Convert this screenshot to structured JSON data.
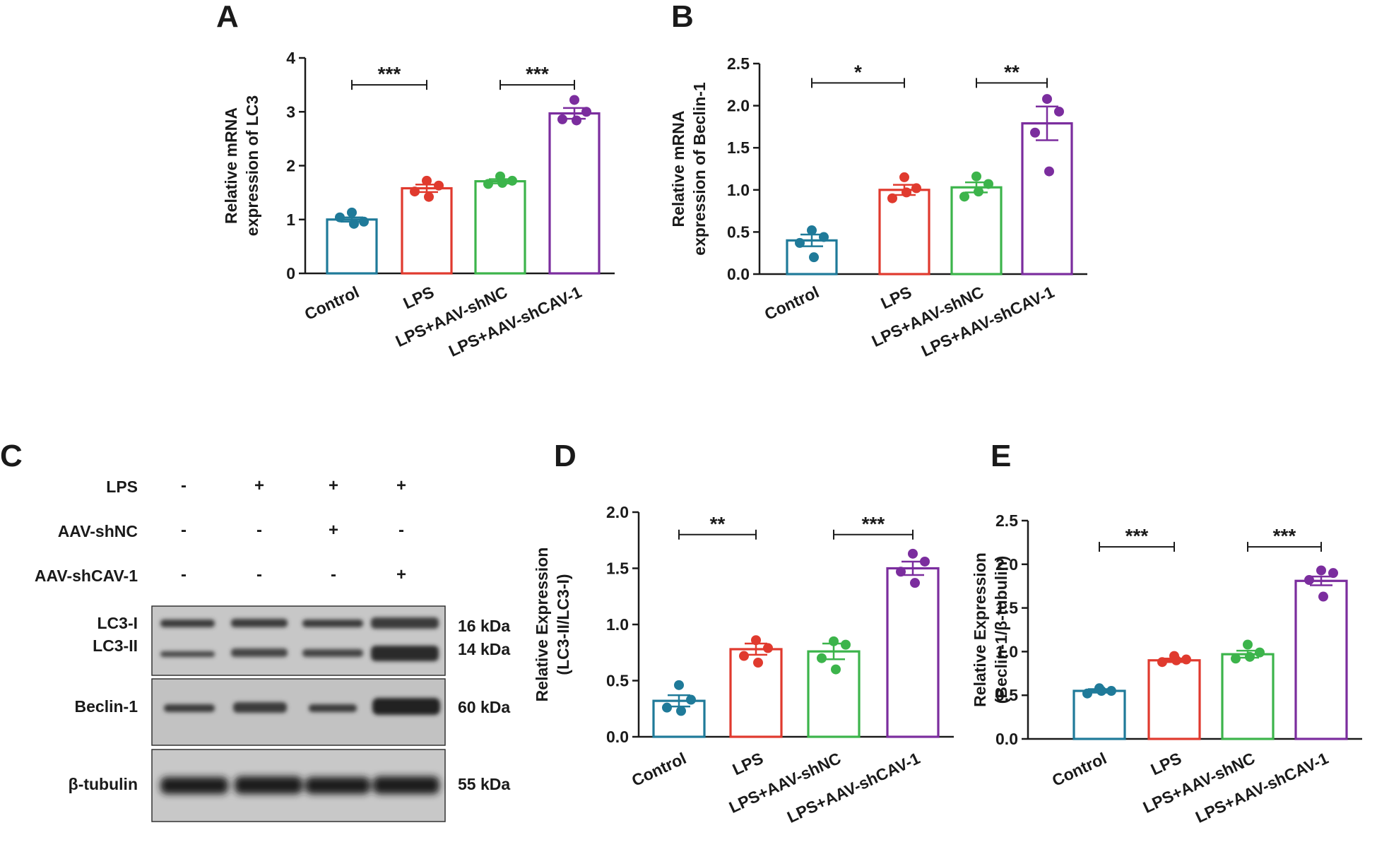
{
  "panels": [
    {
      "letter": "A",
      "id": "A"
    },
    {
      "letter": "B",
      "id": "B"
    },
    {
      "letter": "C",
      "id": "C"
    },
    {
      "letter": "D",
      "id": "D"
    },
    {
      "letter": "E",
      "id": "E"
    }
  ],
  "colors": {
    "Control": "#1f7a99",
    "LPS": "#e03a2e",
    "LPS+AAV-shNC": "#3cb44b",
    "LPS+AAV-shCAV-1": "#7b2d9e",
    "axis": "#1a1a1a"
  },
  "chart_data": [
    {
      "id": "A",
      "type": "bar",
      "ylabel": [
        "Relative mRNA",
        "expression of LC3"
      ],
      "ylim": [
        0,
        4
      ],
      "yticks": [
        "0",
        "1",
        "2",
        "3",
        "4"
      ],
      "categories": [
        "Control",
        "LPS",
        "LPS+AAV-shNC",
        "LPS+AAV-shCAV-1"
      ],
      "values": [
        1.0,
        1.58,
        1.71,
        2.97
      ],
      "errors": [
        0.04,
        0.07,
        0.04,
        0.1
      ],
      "points": [
        [
          1.13,
          0.96,
          1.04,
          0.92
        ],
        [
          1.72,
          1.63,
          1.52,
          1.42
        ],
        [
          1.8,
          1.72,
          1.66,
          1.68
        ],
        [
          3.22,
          3.0,
          2.86,
          2.84
        ]
      ],
      "significance": [
        {
          "from": 0,
          "to": 1,
          "label": "***",
          "y": 3.5
        },
        {
          "from": 2,
          "to": 3,
          "label": "***",
          "y": 3.5
        }
      ]
    },
    {
      "id": "B",
      "type": "bar",
      "ylabel": [
        "Relative mRNA",
        "expression of Beclin-1"
      ],
      "ylim": [
        0,
        2.5
      ],
      "yticks": [
        "0.0",
        "0.5",
        "1.0",
        "1.5",
        "2.0",
        "2.5"
      ],
      "categories": [
        "Control",
        "LPS",
        "LPS+AAV-shNC",
        "LPS+AAV-shCAV-1"
      ],
      "values": [
        0.4,
        1.0,
        1.03,
        1.79
      ],
      "errors": [
        0.07,
        0.06,
        0.06,
        0.2
      ],
      "points": [
        [
          0.52,
          0.44,
          0.37,
          0.2
        ],
        [
          1.15,
          1.02,
          0.9,
          0.97
        ],
        [
          1.16,
          1.07,
          0.92,
          0.98
        ],
        [
          2.08,
          1.93,
          1.68,
          1.22
        ]
      ],
      "significance": [
        {
          "from": 0,
          "to": 1,
          "label": "*",
          "y": 2.27
        },
        {
          "from": 2,
          "to": 3,
          "label": "**",
          "y": 2.27
        }
      ]
    },
    {
      "id": "D",
      "type": "bar",
      "ylabel": [
        "Relative Expression",
        "(LC3-II/LC3-I)"
      ],
      "ylim": [
        0,
        2.0
      ],
      "yticks": [
        "0.0",
        "0.5",
        "1.0",
        "1.5",
        "2.0"
      ],
      "categories": [
        "Control",
        "LPS",
        "LPS+AAV-shNC",
        "LPS+AAV-shCAV-1"
      ],
      "values": [
        0.32,
        0.78,
        0.76,
        1.5
      ],
      "errors": [
        0.05,
        0.05,
        0.07,
        0.06
      ],
      "points": [
        [
          0.46,
          0.33,
          0.26,
          0.23
        ],
        [
          0.86,
          0.79,
          0.72,
          0.66
        ],
        [
          0.85,
          0.82,
          0.7,
          0.6
        ],
        [
          1.63,
          1.56,
          1.47,
          1.37
        ]
      ],
      "significance": [
        {
          "from": 0,
          "to": 1,
          "label": "**",
          "y": 1.8
        },
        {
          "from": 2,
          "to": 3,
          "label": "***",
          "y": 1.8
        }
      ]
    },
    {
      "id": "E",
      "type": "bar",
      "ylabel": [
        "Relative Expression",
        "(Beclin-1/β-tubulin)"
      ],
      "ylim": [
        0,
        2.5
      ],
      "yticks": [
        "0.0",
        "0.5",
        "1.0",
        "1.5",
        "2.0",
        "2.5"
      ],
      "categories": [
        "Control",
        "LPS",
        "LPS+AAV-shNC",
        "LPS+AAV-shCAV-1"
      ],
      "values": [
        0.55,
        0.9,
        0.97,
        1.81
      ],
      "errors": [
        0.02,
        0.02,
        0.04,
        0.05
      ],
      "points": [
        [
          0.58,
          0.55,
          0.52,
          0.55
        ],
        [
          0.95,
          0.91,
          0.88,
          0.9
        ],
        [
          1.08,
          0.99,
          0.92,
          0.94
        ],
        [
          1.93,
          1.9,
          1.82,
          1.63
        ]
      ],
      "significance": [
        {
          "from": 0,
          "to": 1,
          "label": "***",
          "y": 2.2
        },
        {
          "from": 2,
          "to": 3,
          "label": "***",
          "y": 2.2
        }
      ]
    }
  ],
  "blot": {
    "conditions": [
      {
        "label": "LPS",
        "values": [
          "-",
          "+",
          "+",
          "+"
        ]
      },
      {
        "label": "AAV-shNC",
        "values": [
          "-",
          "-",
          "+",
          "-"
        ]
      },
      {
        "label": "AAV-shCAV-1",
        "values": [
          "-",
          "-",
          "-",
          "+"
        ]
      }
    ],
    "rows": [
      {
        "labels": [
          "LC3-I",
          "LC3-II"
        ],
        "kda": [
          "16 kDa",
          "14 kDa"
        ]
      },
      {
        "labels": [
          "Beclin-1"
        ],
        "kda": [
          "60 kDa"
        ]
      },
      {
        "labels": [
          "β-tubulin"
        ],
        "kda": [
          "55 kDa"
        ]
      }
    ]
  }
}
